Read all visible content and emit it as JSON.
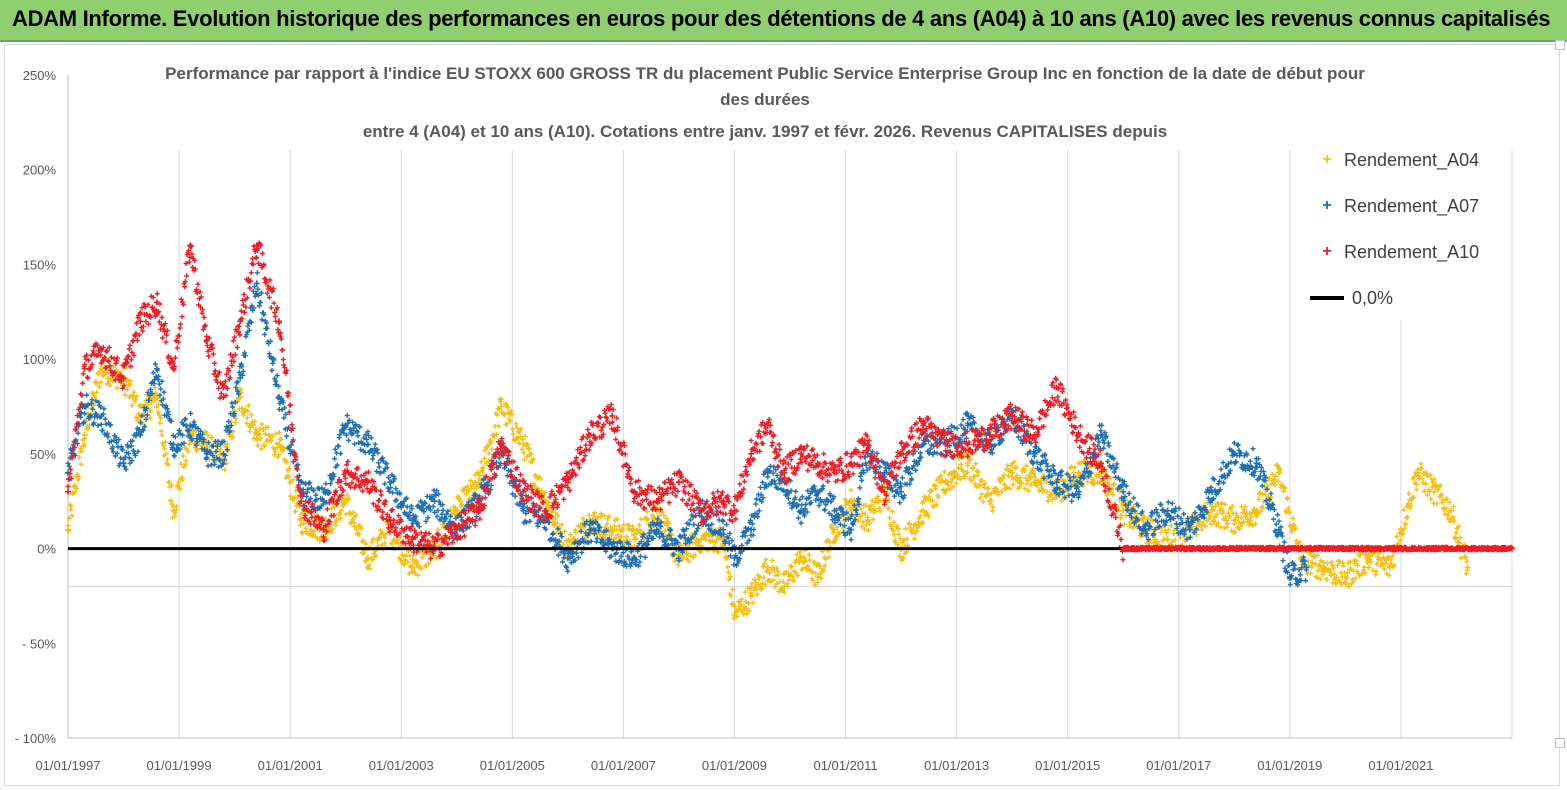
{
  "header": {
    "title": "ADAM Informe. Evolution historique des performances en euros pour des détentions de 4 ans (A04) à 10 ans (A10) avec les revenus connus capitalisés"
  },
  "chart_data": {
    "type": "scatter",
    "title_lines": [
      "Performance par rapport à l'indice EU STOXX 600 GROSS TR  du placement Public Service  Enterprise Group Inc en fonction de la date de début pour",
      "des durées",
      "entre 4 (A04)  et 10 ans (A10). Cotations entre janv. 1997 et févr. 2026. Revenus CAPITALISES depuis"
    ],
    "x_range": [
      1997.0,
      2023.0
    ],
    "ylim": [
      -100,
      250
    ],
    "y_ticks": [
      -100,
      -50,
      0,
      50,
      100,
      150,
      200,
      250
    ],
    "y_tick_labels": [
      "- 100%",
      "- 50%",
      "0%",
      "50%",
      "100%",
      "150%",
      "200%",
      "250%"
    ],
    "x_ticks": [
      1997,
      1999,
      2001,
      2003,
      2005,
      2007,
      2009,
      2011,
      2013,
      2015,
      2017,
      2019,
      2021
    ],
    "x_tick_labels": [
      "01/01/1997",
      "01/01/1999",
      "01/01/2001",
      "01/01/2003",
      "01/01/2005",
      "01/01/2007",
      "01/01/2009",
      "01/01/2011",
      "01/01/2013",
      "01/01/2015",
      "01/01/2017",
      "01/01/2019",
      "01/01/2021"
    ],
    "series": [
      {
        "name": "Rendement_A04",
        "color": "#f5c013",
        "x_end": 2022.2,
        "x": [
          1997.0,
          1997.3,
          1997.6,
          1998.0,
          1998.3,
          1998.6,
          1998.9,
          1999.2,
          1999.5,
          1999.8,
          2000.1,
          2000.4,
          2000.8,
          2001.2,
          2001.6,
          2002.0,
          2002.4,
          2002.8,
          2003.2,
          2003.6,
          2004.0,
          2004.4,
          2004.8,
          2005.2,
          2005.6,
          2006.0,
          2006.4,
          2006.8,
          2007.2,
          2007.6,
          2008.0,
          2008.4,
          2008.8,
          2009.0,
          2009.3,
          2009.6,
          2009.9,
          2010.2,
          2010.5,
          2010.8,
          2011.1,
          2011.4,
          2011.7,
          2012.0,
          2012.4,
          2012.8,
          2013.2,
          2013.6,
          2014.0,
          2014.4,
          2014.8,
          2015.2,
          2015.6,
          2016.0,
          2016.4,
          2016.8,
          2017.2,
          2017.6,
          2018.0,
          2018.4,
          2018.8,
          2019.2,
          2019.6,
          2020.0,
          2020.4,
          2020.8,
          2021.0,
          2021.3,
          2021.6,
          2021.9,
          2022.2
        ],
        "y": [
          10,
          60,
          95,
          90,
          70,
          80,
          20,
          60,
          55,
          45,
          80,
          60,
          55,
          15,
          10,
          25,
          -5,
          10,
          -10,
          0,
          20,
          35,
          75,
          55,
          25,
          0,
          15,
          10,
          5,
          20,
          -5,
          5,
          5,
          -35,
          -25,
          -10,
          -20,
          -5,
          -15,
          10,
          25,
          15,
          30,
          0,
          20,
          35,
          45,
          25,
          40,
          35,
          30,
          40,
          40,
          20,
          10,
          5,
          10,
          20,
          15,
          20,
          40,
          -5,
          -10,
          -15,
          -5,
          -10,
          10,
          40,
          30,
          20,
          -10
        ]
      },
      {
        "name": "Rendement_A07",
        "color": "#1f6fb4",
        "x_end": 2019.3,
        "x": [
          1997.0,
          1997.3,
          1997.6,
          1998.0,
          1998.3,
          1998.6,
          1998.9,
          1999.2,
          1999.5,
          1999.8,
          2000.1,
          2000.4,
          2000.8,
          2001.2,
          2001.6,
          2002.0,
          2002.4,
          2002.8,
          2003.2,
          2003.6,
          2004.0,
          2004.4,
          2004.8,
          2005.2,
          2005.6,
          2006.0,
          2006.4,
          2006.8,
          2007.2,
          2007.6,
          2008.0,
          2008.4,
          2008.8,
          2009.0,
          2009.3,
          2009.6,
          2009.9,
          2010.2,
          2010.5,
          2010.8,
          2011.1,
          2011.4,
          2011.7,
          2012.0,
          2012.4,
          2012.8,
          2013.2,
          2013.6,
          2014.0,
          2014.4,
          2014.8,
          2015.2,
          2015.6,
          2016.0,
          2016.4,
          2016.8,
          2017.2,
          2017.6,
          2018.0,
          2018.4,
          2018.8,
          2019.0,
          2019.3
        ],
        "y": [
          40,
          75,
          70,
          45,
          60,
          95,
          55,
          65,
          50,
          50,
          90,
          140,
          80,
          30,
          25,
          65,
          55,
          35,
          15,
          25,
          10,
          25,
          50,
          20,
          15,
          -5,
          10,
          0,
          -5,
          10,
          0,
          20,
          10,
          -5,
          10,
          40,
          35,
          20,
          30,
          20,
          10,
          50,
          40,
          30,
          55,
          55,
          65,
          55,
          70,
          50,
          35,
          30,
          60,
          30,
          10,
          20,
          10,
          30,
          50,
          45,
          10,
          -15,
          -10
        ]
      },
      {
        "name": "Rendement_A10",
        "color": "#ee1c25",
        "x_end": 2023.0,
        "x": [
          1997.0,
          1997.3,
          1997.6,
          1998.0,
          1998.3,
          1998.6,
          1998.9,
          1999.2,
          1999.5,
          1999.8,
          2000.1,
          2000.4,
          2000.8,
          2001.2,
          2001.6,
          2002.0,
          2002.4,
          2002.8,
          2003.2,
          2003.6,
          2004.0,
          2004.4,
          2004.8,
          2005.2,
          2005.6,
          2006.0,
          2006.4,
          2006.8,
          2007.2,
          2007.6,
          2008.0,
          2008.4,
          2008.8,
          2009.0,
          2009.3,
          2009.6,
          2009.9,
          2010.2,
          2010.5,
          2010.8,
          2011.1,
          2011.4,
          2011.7,
          2012.0,
          2012.4,
          2012.8,
          2013.2,
          2013.6,
          2014.0,
          2014.4,
          2014.8,
          2015.2,
          2015.6,
          2016.0,
          2016.4,
          2016.8,
          2017.2,
          2017.6,
          2018.0,
          2018.4,
          2018.8,
          2019.2,
          2019.6,
          2020.0,
          2020.4,
          2020.8,
          2021.2,
          2021.6,
          2022.0,
          2022.4,
          2022.8,
          2023.0
        ],
        "y": [
          30,
          95,
          105,
          90,
          120,
          130,
          95,
          160,
          110,
          80,
          120,
          160,
          120,
          25,
          10,
          40,
          35,
          15,
          5,
          0,
          10,
          20,
          55,
          30,
          20,
          35,
          60,
          70,
          30,
          25,
          35,
          20,
          25,
          20,
          50,
          65,
          40,
          50,
          45,
          40,
          45,
          55,
          30,
          50,
          65,
          55,
          55,
          60,
          70,
          60,
          85,
          60,
          45,
          0,
          0,
          0,
          0,
          0,
          0,
          0,
          0,
          0,
          0,
          0,
          0,
          0,
          0,
          0,
          0,
          0,
          0,
          0
        ]
      }
    ],
    "reference_line": {
      "name": "0,0%",
      "y": 0,
      "color": "#000000"
    }
  },
  "legend": {
    "items": [
      "Rendement_A04",
      "Rendement_A07",
      "Rendement_A10",
      "0,0%"
    ]
  }
}
